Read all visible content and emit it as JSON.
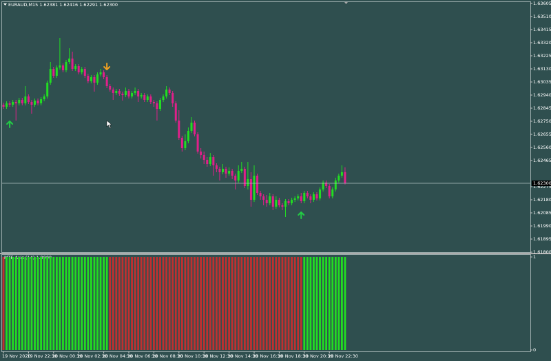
{
  "chart_data": [
    {
      "type": "candlestick",
      "title": "EURAUD,M15 1.62381 1.62416 1.62291 1.62300",
      "categories": [
        "19 Nov 2020",
        null,
        null,
        null,
        null,
        null,
        null,
        null,
        "19 Nov 22:30",
        null,
        null,
        null,
        null,
        null,
        null,
        null,
        "20 Nov 00:30",
        null,
        null,
        null,
        null,
        null,
        null,
        null,
        "20 Nov 02:30",
        null,
        null,
        null,
        null,
        null,
        null,
        null,
        "20 Nov 04:30",
        null,
        null,
        null,
        null,
        null,
        null,
        null,
        "20 Nov 06:30",
        null,
        null,
        null,
        null,
        null,
        null,
        null,
        "20 Nov 08:30",
        null,
        null,
        null,
        null,
        null,
        null,
        null,
        "20 Nov 10:30",
        null,
        null,
        null,
        null,
        null,
        null,
        null,
        "20 Nov 12:30",
        null,
        null,
        null,
        null,
        null,
        null,
        null,
        "20 Nov 14:30",
        null,
        null,
        null,
        null,
        null,
        null,
        null,
        "20 Nov 16:30",
        null,
        null,
        null,
        null,
        null,
        null,
        null,
        "20 Nov 18:30",
        null,
        null,
        null,
        null,
        null,
        null,
        null,
        "20 Nov 20:30",
        null,
        null,
        null,
        null,
        null,
        null,
        null,
        "20 Nov 22:30",
        null,
        null,
        null,
        null,
        null
      ],
      "open": [
        1.6287,
        1.62855,
        1.6288,
        1.6287,
        1.6289,
        1.6288,
        1.62905,
        1.6288,
        1.6293,
        1.6289,
        1.6287,
        1.629,
        1.6288,
        1.6291,
        1.6293,
        1.6303,
        1.6313,
        1.6308,
        1.6314,
        1.63155,
        1.6312,
        1.6318,
        1.63205,
        1.6313,
        1.6315,
        1.63105,
        1.6313,
        1.6308,
        1.6304,
        1.6307,
        1.6303,
        1.6309,
        1.63105,
        1.6307,
        1.63005,
        1.6298,
        1.62955,
        1.6297,
        1.6295,
        1.6294,
        1.6297,
        1.6293,
        1.62955,
        1.6297,
        1.6293,
        1.6294,
        1.62905,
        1.6293,
        1.6289,
        1.6288,
        1.6284,
        1.62905,
        1.6293,
        1.6298,
        1.62955,
        1.6288,
        1.62755,
        1.6263,
        1.62555,
        1.62605,
        1.6268,
        1.6274,
        1.62655,
        1.6253,
        1.62505,
        1.6247,
        1.6244,
        1.6249,
        1.6243,
        1.62405,
        1.6238,
        1.62405,
        1.6237,
        1.6239,
        1.62355,
        1.6232,
        1.6239,
        1.62405,
        1.6228,
        1.6233,
        1.6218,
        1.62355,
        1.6223,
        1.62205,
        1.6218,
        1.62155,
        1.62205,
        1.6213,
        1.6218,
        1.6214,
        1.6213,
        1.6217,
        1.62155,
        1.6218,
        1.6219,
        1.62205,
        1.6217,
        1.6223,
        1.62205,
        1.6218,
        1.6222,
        1.6219,
        1.62255,
        1.62305,
        1.6228,
        1.62205,
        1.62255,
        1.6232,
        1.62355,
        1.62381
      ],
      "high": [
        1.62885,
        1.62895,
        1.62895,
        1.62905,
        1.62905,
        1.6292,
        1.6292,
        1.63005,
        1.62945,
        1.62905,
        1.62915,
        1.62915,
        1.62925,
        1.62945,
        1.63045,
        1.6318,
        1.63145,
        1.63155,
        1.63355,
        1.6317,
        1.63195,
        1.6328,
        1.63255,
        1.63165,
        1.63165,
        1.63145,
        1.63145,
        1.63095,
        1.63085,
        1.63085,
        1.63105,
        1.6313,
        1.6312,
        1.63085,
        1.6302,
        1.62995,
        1.62985,
        1.62985,
        1.62965,
        1.62995,
        1.62985,
        1.6297,
        1.62995,
        1.62985,
        1.62955,
        1.62955,
        1.62945,
        1.62945,
        1.62905,
        1.62895,
        1.6292,
        1.62945,
        1.63005,
        1.62995,
        1.6297,
        1.62895,
        1.6283,
        1.62645,
        1.62655,
        1.62705,
        1.6278,
        1.62755,
        1.6267,
        1.62555,
        1.6253,
        1.6249,
        1.6252,
        1.62505,
        1.62445,
        1.6242,
        1.6244,
        1.6242,
        1.62415,
        1.62405,
        1.6237,
        1.6243,
        1.62455,
        1.6242,
        1.62455,
        1.6238,
        1.6243,
        1.6237,
        1.62245,
        1.6222,
        1.62215,
        1.6223,
        1.6222,
        1.62205,
        1.62195,
        1.62155,
        1.62185,
        1.62185,
        1.62195,
        1.62205,
        1.6222,
        1.6223,
        1.62245,
        1.62245,
        1.6222,
        1.62235,
        1.62235,
        1.6227,
        1.6232,
        1.6232,
        1.62295,
        1.6227,
        1.6234,
        1.6237,
        1.6243,
        1.62416
      ],
      "low": [
        1.6284,
        1.6284,
        1.62855,
        1.62855,
        1.62755,
        1.62865,
        1.62865,
        1.62865,
        1.62875,
        1.62805,
        1.62855,
        1.62865,
        1.62865,
        1.62895,
        1.62915,
        1.63015,
        1.63065,
        1.63065,
        1.63125,
        1.63105,
        1.63105,
        1.63165,
        1.63115,
        1.63115,
        1.6309,
        1.6309,
        1.63065,
        1.63025,
        1.63025,
        1.62965,
        1.63015,
        1.63075,
        1.63055,
        1.6299,
        1.62965,
        1.62905,
        1.6294,
        1.62935,
        1.629,
        1.62925,
        1.62915,
        1.62915,
        1.6294,
        1.6289,
        1.62915,
        1.6289,
        1.6289,
        1.62875,
        1.62855,
        1.62755,
        1.62825,
        1.6289,
        1.62915,
        1.6294,
        1.62855,
        1.6274,
        1.62615,
        1.6253,
        1.6254,
        1.6259,
        1.62665,
        1.6264,
        1.62515,
        1.6248,
        1.6244,
        1.6242,
        1.62425,
        1.62355,
        1.6238,
        1.6232,
        1.62365,
        1.6234,
        1.62355,
        1.6233,
        1.62255,
        1.62305,
        1.62375,
        1.62265,
        1.62255,
        1.6213,
        1.62165,
        1.62215,
        1.6218,
        1.6214,
        1.6213,
        1.6214,
        1.62105,
        1.62115,
        1.62125,
        1.62105,
        1.62055,
        1.6214,
        1.6214,
        1.62165,
        1.62175,
        1.62155,
        1.62155,
        1.6219,
        1.62155,
        1.62165,
        1.62175,
        1.62175,
        1.6224,
        1.62265,
        1.6219,
        1.6219,
        1.6224,
        1.62305,
        1.6234,
        1.62291
      ],
      "close": [
        1.62855,
        1.6288,
        1.6287,
        1.6289,
        1.6288,
        1.62905,
        1.6288,
        1.6293,
        1.6289,
        1.6287,
        1.629,
        1.6288,
        1.6291,
        1.6293,
        1.6303,
        1.6313,
        1.6308,
        1.6314,
        1.63155,
        1.6312,
        1.6318,
        1.63205,
        1.6313,
        1.6315,
        1.63105,
        1.6313,
        1.6308,
        1.6304,
        1.6307,
        1.6303,
        1.6309,
        1.63105,
        1.6307,
        1.63005,
        1.6298,
        1.62955,
        1.6297,
        1.6295,
        1.6294,
        1.6297,
        1.6293,
        1.62955,
        1.6297,
        1.6293,
        1.6294,
        1.62905,
        1.6293,
        1.6289,
        1.6288,
        1.6284,
        1.62905,
        1.6293,
        1.6298,
        1.62955,
        1.6288,
        1.62755,
        1.6263,
        1.62555,
        1.62605,
        1.6268,
        1.6274,
        1.62655,
        1.6253,
        1.62505,
        1.6247,
        1.6244,
        1.6249,
        1.6243,
        1.62405,
        1.6238,
        1.62405,
        1.6237,
        1.6239,
        1.62355,
        1.6232,
        1.6239,
        1.62405,
        1.6228,
        1.6233,
        1.6218,
        1.62355,
        1.6223,
        1.62205,
        1.6218,
        1.62155,
        1.62205,
        1.6213,
        1.6218,
        1.6214,
        1.6213,
        1.6217,
        1.62155,
        1.6218,
        1.6219,
        1.62205,
        1.6217,
        1.6223,
        1.62205,
        1.6218,
        1.6222,
        1.6219,
        1.62255,
        1.62305,
        1.6228,
        1.62205,
        1.62255,
        1.6232,
        1.62355,
        1.6238,
        1.623
      ],
      "up_color": "#22dd22",
      "down_color": "#e0208a",
      "ylim": [
        1.618,
        1.63605
      ],
      "yticks": [
        1.63605,
        {
          "value": 1.6351,
          "label": "1.63510"
        },
        1.63415,
        {
          "value": 1.6332,
          "label": "1.63320"
        },
        1.63225,
        {
          "value": 1.6313,
          "label": "1.63130"
        },
        1.63035,
        {
          "value": 1.6294,
          "label": "1.62940"
        },
        1.62845,
        {
          "value": 1.6275,
          "label": "1.62750"
        },
        1.62655,
        {
          "value": 1.6256,
          "label": "1.62560"
        },
        1.62465,
        1.62275,
        {
          "value": 1.6218,
          "label": "1.62180"
        },
        1.62085,
        {
          "value": 1.6199,
          "label": "1.61990"
        },
        1.61895,
        {
          "value": 1.618,
          "label": "1.61800"
        }
      ],
      "price_label": "1.62300",
      "signals": [
        {
          "at": 2,
          "price": 1.62725,
          "direction": "up",
          "color": "#22cc44"
        },
        {
          "at": 33,
          "price": 1.6315,
          "direction": "down",
          "color": "#f0a020"
        },
        {
          "at": 95,
          "price": 1.62065,
          "direction": "up",
          "color": "#22cc44"
        }
      ]
    },
    {
      "type": "histogram",
      "title": "MTF Axis (14) 1.0000",
      "values": [
        1,
        1,
        1,
        1,
        1,
        1,
        1,
        1,
        1,
        1,
        1,
        1,
        1,
        1,
        1,
        1,
        1,
        1,
        1,
        1,
        1,
        1,
        1,
        1,
        1,
        1,
        1,
        1,
        1,
        1,
        1,
        1,
        1,
        1,
        1,
        1,
        1,
        1,
        1,
        1,
        1,
        1,
        1,
        1,
        1,
        1,
        1,
        1,
        1,
        1,
        1,
        1,
        1,
        1,
        1,
        1,
        1,
        1,
        1,
        1,
        1,
        1,
        1,
        1,
        1,
        1,
        1,
        1,
        1,
        1,
        1,
        1,
        1,
        1,
        1,
        1,
        1,
        1,
        1,
        1,
        1,
        1,
        1,
        1,
        1,
        1,
        1,
        1,
        1,
        1,
        1,
        1,
        1,
        1,
        1,
        1,
        1,
        1,
        1,
        1,
        1,
        1,
        1,
        1,
        1,
        1,
        1,
        1,
        1,
        1
      ],
      "colors": [
        "#c03030",
        "#22dd22",
        "#22dd22",
        "#22dd22",
        "#22dd22",
        "#22dd22",
        "#22dd22",
        "#22dd22",
        "#22dd22",
        "#22dd22",
        "#22dd22",
        "#22dd22",
        "#22dd22",
        "#22dd22",
        "#22dd22",
        "#22dd22",
        "#22dd22",
        "#22dd22",
        "#22dd22",
        "#22dd22",
        "#22dd22",
        "#22dd22",
        "#22dd22",
        "#22dd22",
        "#22dd22",
        "#22dd22",
        "#22dd22",
        "#22dd22",
        "#22dd22",
        "#22dd22",
        "#22dd22",
        "#22dd22",
        "#22dd22",
        "#22dd22",
        "#c03030",
        "#c03030",
        "#c03030",
        "#c03030",
        "#c03030",
        "#c03030",
        "#c03030",
        "#c03030",
        "#c03030",
        "#c03030",
        "#c03030",
        "#c03030",
        "#c03030",
        "#c03030",
        "#c03030",
        "#c03030",
        "#c03030",
        "#c03030",
        "#c03030",
        "#c03030",
        "#c03030",
        "#c03030",
        "#c03030",
        "#c03030",
        "#c03030",
        "#c03030",
        "#c03030",
        "#c03030",
        "#c03030",
        "#c03030",
        "#c03030",
        "#c03030",
        "#c03030",
        "#c03030",
        "#c03030",
        "#c03030",
        "#c03030",
        "#c03030",
        "#c03030",
        "#c03030",
        "#c03030",
        "#c03030",
        "#c03030",
        "#c03030",
        "#c03030",
        "#c03030",
        "#c03030",
        "#c03030",
        "#c03030",
        "#c03030",
        "#c03030",
        "#c03030",
        "#c03030",
        "#c03030",
        "#c03030",
        "#c03030",
        "#c03030",
        "#c03030",
        "#c03030",
        "#c03030",
        "#c03030",
        "#c03030",
        "#22dd22",
        "#22dd22",
        "#22dd22",
        "#22dd22",
        "#22dd22",
        "#22dd22",
        "#22dd22",
        "#22dd22",
        "#22dd22",
        "#22dd22",
        "#22dd22",
        "#22dd22",
        "#22dd22",
        "#22dd22"
      ],
      "ylim": [
        0,
        1
      ],
      "yticks": [
        1,
        0
      ]
    }
  ]
}
